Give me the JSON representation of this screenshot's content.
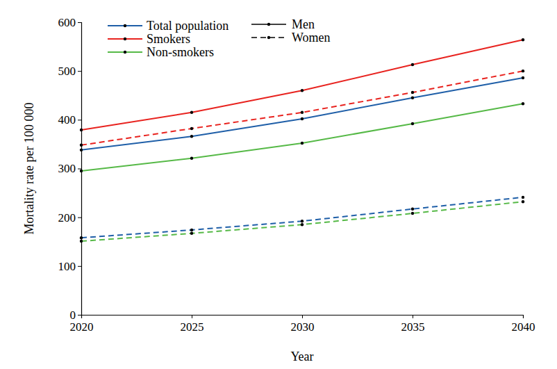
{
  "chart_data": {
    "type": "line",
    "x_label": "Year",
    "y_label": "Mortality rate  per 100 000",
    "x": [
      2020,
      2025,
      2030,
      2035,
      2040
    ],
    "xlim": [
      2020,
      2040
    ],
    "xticks": [
      2020,
      2025,
      2030,
      2035,
      2040
    ],
    "ylim": [
      0,
      600
    ],
    "yticks": [
      0,
      100,
      200,
      300,
      400,
      500,
      600
    ],
    "grid": false,
    "legend": "upper left",
    "marker": "dot",
    "series": [
      {
        "name": "Total population",
        "color": "#1f5fa8",
        "line_style": "solid",
        "values": [
          338,
          366,
          402,
          445,
          486
        ]
      },
      {
        "name": "Smokers",
        "color": "#e8231f",
        "line_style": "solid",
        "values": [
          379,
          415,
          460,
          513,
          564
        ]
      },
      {
        "name": "Non-smokers",
        "color": "#56b947",
        "line_style": "solid",
        "values": [
          295,
          321,
          352,
          392,
          433
        ]
      },
      {
        "name": "Total population",
        "color": "#1f5fa8",
        "line_style": "dashed",
        "values": [
          158,
          174,
          192,
          217,
          241
        ]
      },
      {
        "name": "Smokers",
        "color": "#e8231f",
        "line_style": "dashed",
        "values": [
          348,
          382,
          415,
          456,
          500
        ]
      },
      {
        "name": "Non-smokers",
        "color": "#56b947",
        "line_style": "dashed",
        "values": [
          151,
          167,
          185,
          208,
          232
        ]
      }
    ],
    "style_key": [
      {
        "label": "Men",
        "line_style": "solid"
      },
      {
        "label": "Women",
        "line_style": "dashed"
      }
    ]
  }
}
